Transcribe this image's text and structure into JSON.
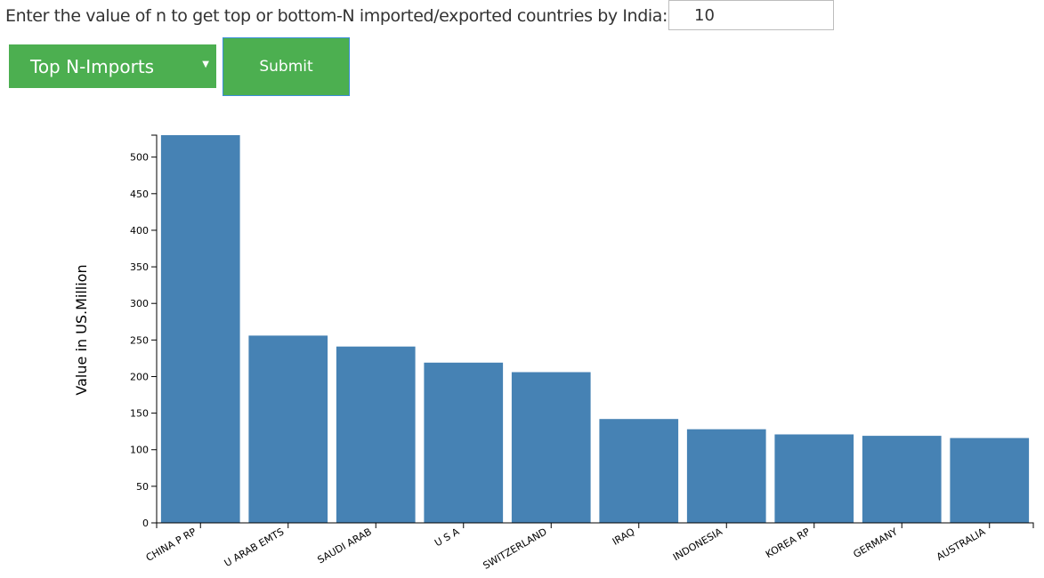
{
  "form": {
    "prompt_label": "Enter the value of n to get top or bottom-N imported/exported countries by India:",
    "n_value": "10",
    "select_value": "Top N-Imports",
    "submit_label": "Submit"
  },
  "colors": {
    "button_green": "#4caf50",
    "bar_blue": "#4682b4"
  },
  "chart_data": {
    "type": "bar",
    "ylabel": "Value in US.Million",
    "xlabel": "",
    "ylim": [
      0,
      530
    ],
    "yticks": [
      0,
      50,
      100,
      150,
      200,
      250,
      300,
      350,
      400,
      450,
      500
    ],
    "categories": [
      "CHINA P RP",
      "U ARAB EMTS",
      "SAUDI ARAB",
      "U S A",
      "SWITZERLAND",
      "IRAQ",
      "INDONESIA",
      "KOREA RP",
      "GERMANY",
      "AUSTRALIA"
    ],
    "values": [
      530,
      256,
      241,
      219,
      206,
      142,
      128,
      121,
      119,
      116
    ],
    "grid": false,
    "legend": "none"
  }
}
